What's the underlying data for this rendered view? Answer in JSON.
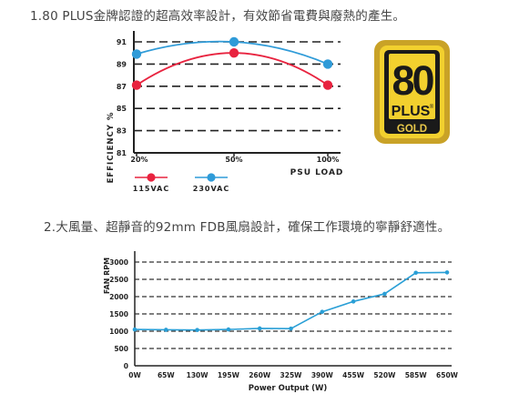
{
  "headings": {
    "h1": "1.80 PLUS金牌認證的超高效率設計，有效節省電費與廢熱的產生。",
    "h2": "2.大風量、超靜音的92mm FDB風扇設計，確保工作環境的寧靜舒適性。"
  },
  "badge": {
    "number": "80",
    "plus": "PLUS",
    "reg": "®",
    "tier": "GOLD",
    "colors": {
      "outer": "#c9a227",
      "inner": "#f2d02e",
      "dark": "#1a1a1a",
      "gold_text": "#e9c84a"
    }
  },
  "chart_data": [
    {
      "type": "line",
      "title": "",
      "xlabel": "PSU LOAD",
      "ylabel": "EFFICIENCY %",
      "categories": [
        "20%",
        "50%",
        "100%"
      ],
      "yticks": [
        "91",
        "89",
        "87",
        "85",
        "83",
        "81"
      ],
      "ylim": [
        81,
        91
      ],
      "grid": "dashed horizontal",
      "legend_position": "bottom-left",
      "series": [
        {
          "name": "115VAC",
          "color": "#e8233f",
          "values": [
            87.1,
            90.0,
            87.1
          ]
        },
        {
          "name": "230VAC",
          "color": "#2f9bd8",
          "values": [
            89.9,
            91.0,
            89.0
          ]
        }
      ]
    },
    {
      "type": "line",
      "title": "",
      "xlabel": "Power Output  (W)",
      "ylabel": "FAN RPM",
      "categories": [
        "0W",
        "65W",
        "130W",
        "195W",
        "260W",
        "325W",
        "390W",
        "455W",
        "520W",
        "585W",
        "650W"
      ],
      "yticks": [
        "3000",
        "2500",
        "2000",
        "1500",
        "1000",
        "500",
        "0"
      ],
      "ylim": [
        0,
        3000
      ],
      "grid": "dashed horizontal",
      "series": [
        {
          "color": "#2a9fd6",
          "values": [
            1050,
            1040,
            1035,
            1050,
            1080,
            1075,
            1560,
            1860,
            2080,
            2690,
            2700
          ]
        }
      ]
    }
  ]
}
